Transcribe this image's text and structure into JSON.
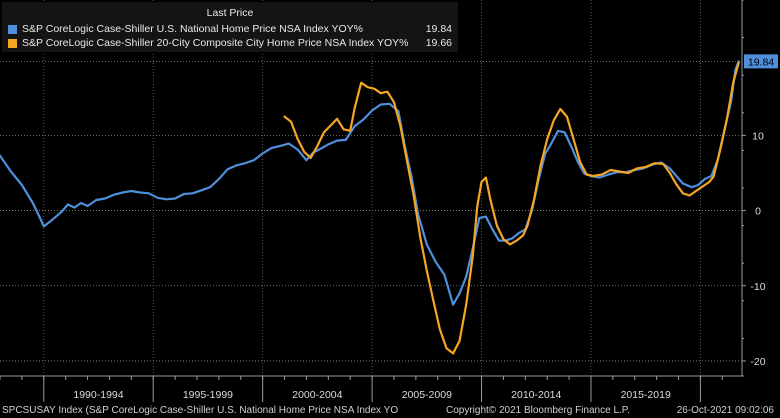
{
  "legend": {
    "title": "Last Price",
    "series": [
      {
        "name": "S&P CoreLogic Case-Shiller U.S. National Home Price NSA Index YOY%",
        "value": "19.84",
        "color": "#4f8fdc"
      },
      {
        "name": "S&P CoreLogic Case-Shiller 20-City Composite City Home Price NSA Index YOY%",
        "value": "19.66",
        "color": "#f5a623"
      }
    ]
  },
  "footer": {
    "left": "SPCSUSAY Index (S&P CoreLogic Case-Shiller U.S. National Home Price NSA Index YO",
    "middle": "Copyright© 2021 Bloomberg Finance L.P.",
    "right": "26-Oct-2021 09:02:06"
  },
  "chart_data": {
    "type": "line",
    "xlim": [
      1988.0,
      2021.9
    ],
    "ylim": [
      -22,
      28
    ],
    "y_ticks": [
      -20,
      -10,
      0,
      10
    ],
    "x_periods": [
      {
        "label": "1990-1994",
        "start": 1990,
        "end": 1995
      },
      {
        "label": "1995-1999",
        "start": 1995,
        "end": 2000
      },
      {
        "label": "2000-2004",
        "start": 2000,
        "end": 2005
      },
      {
        "label": "2005-2009",
        "start": 2005,
        "end": 2010
      },
      {
        "label": "2010-2014",
        "start": 2010,
        "end": 2015
      },
      {
        "label": "2015-2019",
        "start": 2015,
        "end": 2020
      }
    ],
    "last_price_label": "19.84",
    "last_price_value": 19.84,
    "series": [
      {
        "name": "S&P CoreLogic Case-Shiller U.S. National Home Price NSA Index YOY%",
        "color": "#4f8fdc",
        "points": [
          [
            1988.0,
            7.3
          ],
          [
            1988.5,
            5.2
          ],
          [
            1989.0,
            3.4
          ],
          [
            1989.5,
            1.0
          ],
          [
            1989.8,
            -0.8
          ],
          [
            1990.0,
            -2.1
          ],
          [
            1990.4,
            -1.2
          ],
          [
            1990.8,
            -0.2
          ],
          [
            1991.1,
            0.8
          ],
          [
            1991.4,
            0.4
          ],
          [
            1991.7,
            1.0
          ],
          [
            1992.0,
            0.6
          ],
          [
            1992.4,
            1.4
          ],
          [
            1992.8,
            1.6
          ],
          [
            1993.2,
            2.1
          ],
          [
            1993.6,
            2.4
          ],
          [
            1994.0,
            2.6
          ],
          [
            1994.4,
            2.4
          ],
          [
            1994.8,
            2.3
          ],
          [
            1995.2,
            1.7
          ],
          [
            1995.6,
            1.5
          ],
          [
            1996.0,
            1.6
          ],
          [
            1996.4,
            2.2
          ],
          [
            1996.8,
            2.3
          ],
          [
            1997.2,
            2.7
          ],
          [
            1997.6,
            3.1
          ],
          [
            1998.0,
            4.2
          ],
          [
            1998.4,
            5.5
          ],
          [
            1998.8,
            6.0
          ],
          [
            1999.2,
            6.3
          ],
          [
            1999.6,
            6.7
          ],
          [
            2000.0,
            7.6
          ],
          [
            2000.4,
            8.3
          ],
          [
            2000.8,
            8.6
          ],
          [
            2001.2,
            8.9
          ],
          [
            2001.6,
            8.1
          ],
          [
            2002.0,
            6.7
          ],
          [
            2002.3,
            7.7
          ],
          [
            2002.7,
            8.3
          ],
          [
            2003.0,
            8.8
          ],
          [
            2003.4,
            9.3
          ],
          [
            2003.8,
            9.4
          ],
          [
            2004.2,
            11.2
          ],
          [
            2004.6,
            12.1
          ],
          [
            2005.0,
            13.3
          ],
          [
            2005.4,
            14.1
          ],
          [
            2005.8,
            14.2
          ],
          [
            2006.2,
            13.2
          ],
          [
            2006.5,
            8.5
          ],
          [
            2006.8,
            4.5
          ],
          [
            2007.1,
            -0.5
          ],
          [
            2007.5,
            -4.5
          ],
          [
            2007.9,
            -6.8
          ],
          [
            2008.3,
            -8.5
          ],
          [
            2008.7,
            -12.5
          ],
          [
            2009.0,
            -11.0
          ],
          [
            2009.3,
            -8.8
          ],
          [
            2009.6,
            -5.0
          ],
          [
            2009.9,
            -1.0
          ],
          [
            2010.2,
            -0.8
          ],
          [
            2010.5,
            -2.5
          ],
          [
            2010.8,
            -4.0
          ],
          [
            2011.1,
            -4.0
          ],
          [
            2011.4,
            -3.7
          ],
          [
            2011.7,
            -3.0
          ],
          [
            2012.0,
            -2.5
          ],
          [
            2012.3,
            0.0
          ],
          [
            2012.6,
            4.0
          ],
          [
            2012.9,
            7.5
          ],
          [
            2013.2,
            9.0
          ],
          [
            2013.5,
            10.6
          ],
          [
            2013.8,
            10.4
          ],
          [
            2014.1,
            8.5
          ],
          [
            2014.4,
            6.5
          ],
          [
            2014.7,
            4.9
          ],
          [
            2015.0,
            4.6
          ],
          [
            2015.4,
            4.4
          ],
          [
            2015.8,
            4.8
          ],
          [
            2016.2,
            5.1
          ],
          [
            2016.6,
            5.1
          ],
          [
            2017.0,
            5.4
          ],
          [
            2017.4,
            5.6
          ],
          [
            2017.8,
            6.1
          ],
          [
            2018.2,
            6.4
          ],
          [
            2018.6,
            5.6
          ],
          [
            2018.9,
            4.6
          ],
          [
            2019.2,
            3.6
          ],
          [
            2019.6,
            3.1
          ],
          [
            2019.9,
            3.4
          ],
          [
            2020.2,
            4.2
          ],
          [
            2020.5,
            4.6
          ],
          [
            2020.8,
            6.8
          ],
          [
            2021.1,
            10.8
          ],
          [
            2021.4,
            14.5
          ],
          [
            2021.6,
            18.7
          ],
          [
            2021.75,
            19.84
          ]
        ]
      },
      {
        "name": "S&P CoreLogic Case-Shiller 20-City Composite City Home Price NSA Index YOY%",
        "color": "#f5a623",
        "points": [
          [
            2001.0,
            12.5
          ],
          [
            2001.3,
            11.8
          ],
          [
            2001.6,
            9.5
          ],
          [
            2001.9,
            7.8
          ],
          [
            2002.2,
            7.0
          ],
          [
            2002.5,
            8.6
          ],
          [
            2002.8,
            10.4
          ],
          [
            2003.1,
            11.3
          ],
          [
            2003.4,
            12.2
          ],
          [
            2003.7,
            10.8
          ],
          [
            2004.0,
            10.6
          ],
          [
            2004.2,
            13.6
          ],
          [
            2004.5,
            17.0
          ],
          [
            2004.8,
            16.4
          ],
          [
            2005.1,
            16.2
          ],
          [
            2005.4,
            15.6
          ],
          [
            2005.7,
            15.8
          ],
          [
            2006.0,
            14.4
          ],
          [
            2006.3,
            11.2
          ],
          [
            2006.6,
            6.5
          ],
          [
            2006.9,
            2.0
          ],
          [
            2007.2,
            -3.5
          ],
          [
            2007.5,
            -8.0
          ],
          [
            2007.8,
            -12.0
          ],
          [
            2008.1,
            -15.8
          ],
          [
            2008.4,
            -18.3
          ],
          [
            2008.7,
            -19.0
          ],
          [
            2009.0,
            -17.3
          ],
          [
            2009.3,
            -12.5
          ],
          [
            2009.6,
            -6.0
          ],
          [
            2009.8,
            0.5
          ],
          [
            2010.0,
            3.8
          ],
          [
            2010.2,
            4.4
          ],
          [
            2010.4,
            1.5
          ],
          [
            2010.7,
            -2.0
          ],
          [
            2011.0,
            -3.8
          ],
          [
            2011.3,
            -4.5
          ],
          [
            2011.6,
            -4.0
          ],
          [
            2011.9,
            -3.3
          ],
          [
            2012.1,
            -2.0
          ],
          [
            2012.4,
            1.5
          ],
          [
            2012.7,
            6.0
          ],
          [
            2013.0,
            9.5
          ],
          [
            2013.3,
            12.0
          ],
          [
            2013.6,
            13.5
          ],
          [
            2013.9,
            12.5
          ],
          [
            2014.2,
            9.5
          ],
          [
            2014.5,
            6.5
          ],
          [
            2014.8,
            4.8
          ],
          [
            2015.1,
            4.6
          ],
          [
            2015.5,
            4.8
          ],
          [
            2015.9,
            5.4
          ],
          [
            2016.3,
            5.2
          ],
          [
            2016.7,
            5.0
          ],
          [
            2017.1,
            5.6
          ],
          [
            2017.5,
            5.8
          ],
          [
            2017.9,
            6.3
          ],
          [
            2018.3,
            6.2
          ],
          [
            2018.6,
            5.0
          ],
          [
            2018.9,
            3.5
          ],
          [
            2019.2,
            2.3
          ],
          [
            2019.5,
            2.0
          ],
          [
            2019.8,
            2.6
          ],
          [
            2020.1,
            3.2
          ],
          [
            2020.4,
            3.8
          ],
          [
            2020.6,
            4.5
          ],
          [
            2020.9,
            8.0
          ],
          [
            2021.2,
            12.0
          ],
          [
            2021.5,
            17.0
          ],
          [
            2021.75,
            19.66
          ]
        ]
      }
    ]
  }
}
